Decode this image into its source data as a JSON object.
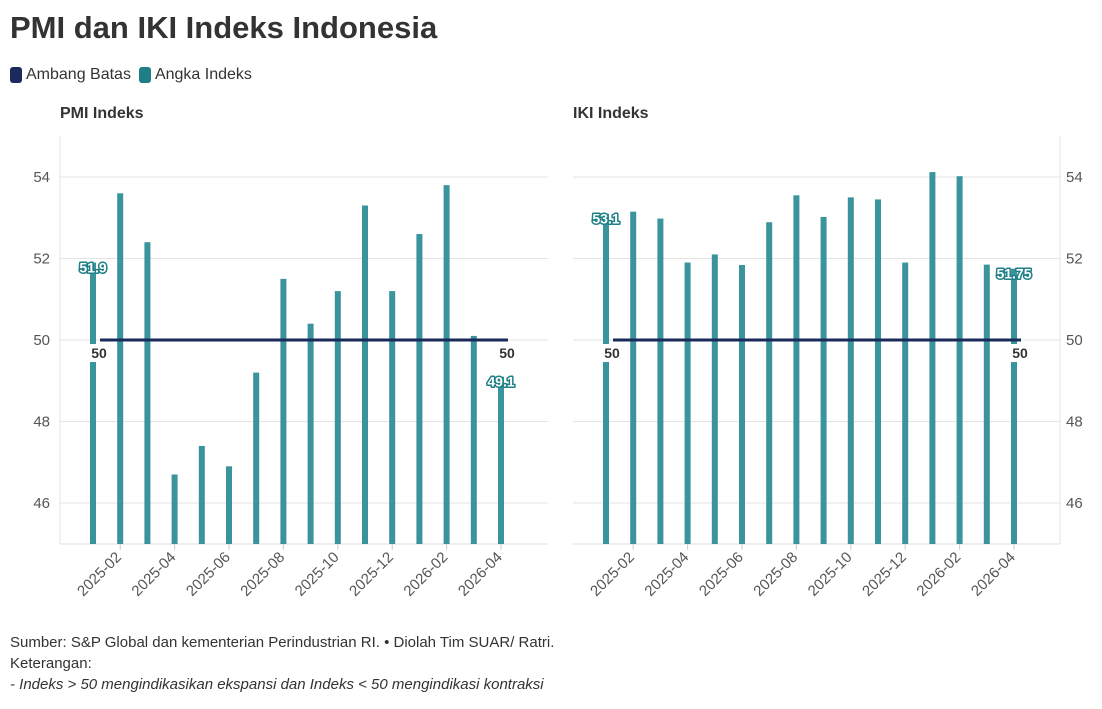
{
  "title": "PMI dan IKI Indeks Indonesia",
  "legend": [
    {
      "label": "Ambang Batas",
      "color": "#1a2a5a"
    },
    {
      "label": "Angka Indeks",
      "color": "#1f7f86"
    }
  ],
  "colors": {
    "bar": "#3a949b",
    "threshold": "#1a2a5a",
    "label_text": "#ffffff",
    "label_stroke": "#1f7f86"
  },
  "chart_data": [
    {
      "type": "bar",
      "title": "PMI Indeks",
      "x": [
        "2025-01",
        "2025-02",
        "2025-03",
        "2025-04",
        "2025-05",
        "2025-06",
        "2025-07",
        "2025-08",
        "2025-09",
        "2025-10",
        "2025-11",
        "2025-12",
        "2026-01",
        "2026-02",
        "2026-03",
        "2026-04"
      ],
      "tick_labels": [
        "2025-02",
        "2025-04",
        "2025-06",
        "2025-08",
        "2025-10",
        "2025-12",
        "2026-02",
        "2026-04"
      ],
      "values": [
        51.9,
        53.6,
        52.4,
        46.7,
        47.4,
        46.9,
        49.2,
        51.5,
        50.4,
        51.2,
        53.3,
        51.2,
        52.6,
        53.8,
        50.1,
        49.1
      ],
      "threshold": 50,
      "threshold_labels": [
        "50",
        "50"
      ],
      "value_labels": [
        {
          "index": 0,
          "text": "51.9"
        },
        {
          "index": 15,
          "text": "49.1"
        }
      ],
      "yticks": [
        "46",
        "48",
        "50",
        "52",
        "54"
      ],
      "ylim": [
        45,
        55
      ],
      "y_axis_side": "left"
    },
    {
      "type": "bar",
      "title": "IKI Indeks",
      "x": [
        "2025-01",
        "2025-02",
        "2025-03",
        "2025-04",
        "2025-05",
        "2025-06",
        "2025-07",
        "2025-08",
        "2025-09",
        "2025-10",
        "2025-11",
        "2025-12",
        "2026-01",
        "2026-02",
        "2026-03",
        "2026-04"
      ],
      "tick_labels": [
        "2025-02",
        "2025-04",
        "2025-06",
        "2025-08",
        "2025-10",
        "2025-12",
        "2026-02",
        "2026-04"
      ],
      "values": [
        53.1,
        53.15,
        52.98,
        51.9,
        52.1,
        51.84,
        52.89,
        53.55,
        53.02,
        53.5,
        53.45,
        51.9,
        54.12,
        54.02,
        51.85,
        51.75
      ],
      "threshold": 50,
      "threshold_labels": [
        "50",
        "50"
      ],
      "value_labels": [
        {
          "index": 0,
          "text": "53.1"
        },
        {
          "index": 15,
          "text": "51.75"
        }
      ],
      "yticks": [
        "46",
        "48",
        "50",
        "52",
        "54"
      ],
      "ylim": [
        45,
        55
      ],
      "y_axis_side": "right"
    }
  ],
  "footer": {
    "source": "Sumber: S&P Global dan kementerian Perindustrian RI. • Diolah Tim SUAR/ Ratri.",
    "note_heading": "Keterangan:",
    "note": "- Indeks > 50 mengindikasikan ekspansi dan Indeks < 50 mengindikasi kontraksi"
  }
}
